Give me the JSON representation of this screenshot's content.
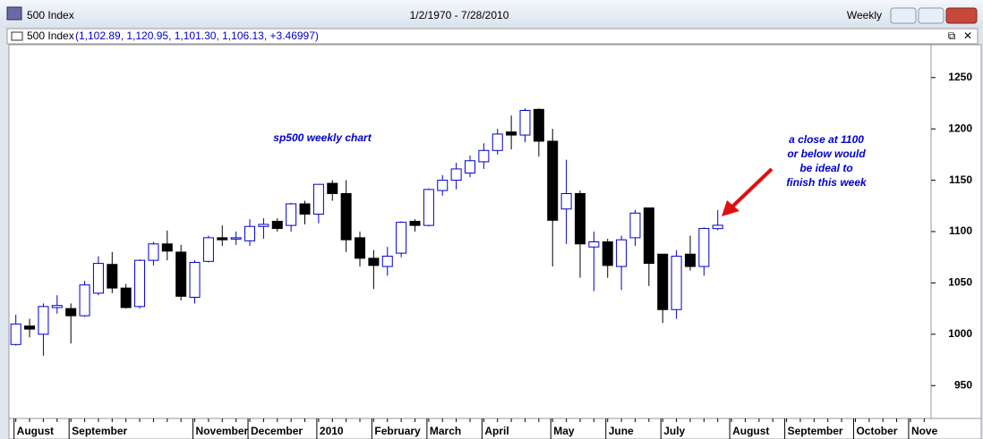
{
  "window": {
    "title": "500 Index",
    "range": "1/2/1970 - 7/28/2010",
    "period": "Weekly"
  },
  "chart_data": {
    "type": "candlestick",
    "legend_name": "500 Index",
    "legend_values": "(1,102.89, 1,120.95, 1,101.30, 1,106.13, +3.46997)",
    "annotations": [
      {
        "lines": [
          "sp500 weekly chart"
        ]
      },
      {
        "lines": [
          "a close at 1100",
          "or below would",
          "be ideal to",
          "finish this week"
        ]
      }
    ],
    "categories": [
      "August",
      null,
      null,
      null,
      "September",
      null,
      null,
      null,
      null,
      null,
      null,
      null,
      null,
      "November",
      null,
      null,
      null,
      "December",
      null,
      null,
      null,
      null,
      "2010",
      null,
      null,
      null,
      "February",
      null,
      null,
      null,
      "March",
      null,
      null,
      null,
      "April",
      null,
      null,
      null,
      null,
      "May",
      null,
      null,
      null,
      "June",
      null,
      null,
      null,
      "July",
      null,
      null,
      null,
      null,
      "August",
      null,
      null,
      null,
      "September",
      null,
      null,
      null,
      null,
      "October",
      null,
      null,
      null,
      "Nove",
      null
    ],
    "open": [
      990,
      1008,
      1000,
      1026,
      1025,
      1018,
      1040,
      1068,
      1045,
      1027,
      1072,
      1088,
      1080,
      1036,
      1071,
      1094,
      1093,
      1091,
      1105,
      1110,
      1106,
      1127,
      1117,
      1147,
      1137,
      1094,
      1074,
      1066,
      1079,
      1110,
      1106,
      1140,
      1150,
      1157,
      1168,
      1179,
      1197,
      1194,
      1219,
      1188,
      1122,
      1137,
      1085,
      1090,
      1066,
      1094,
      1123,
      1078,
      1024,
      1078,
      1066,
      1102.89,
      null,
      null,
      null,
      null,
      null,
      null,
      null,
      null,
      null,
      null,
      null,
      null,
      null,
      null,
      null
    ],
    "high": [
      1019,
      1015,
      1030,
      1038,
      1030,
      1052,
      1076,
      1080,
      1049,
      1073,
      1090,
      1101,
      1087,
      1072,
      1096,
      1106,
      1100,
      1112,
      1113,
      1113,
      1128,
      1130,
      1146,
      1150,
      1150,
      1100,
      1082,
      1085,
      1110,
      1112,
      1142,
      1155,
      1167,
      1174,
      1186,
      1200,
      1213,
      1220,
      1220,
      1200,
      1170,
      1140,
      1100,
      1093,
      1096,
      1121,
      1123,
      1078,
      1082,
      1096,
      1104,
      1120.95,
      null,
      null,
      null,
      null,
      null,
      null,
      null,
      null,
      null,
      null,
      null,
      null,
      null,
      null,
      null
    ],
    "low": [
      989,
      997,
      979,
      1020,
      991,
      1017,
      1038,
      1040,
      1025,
      1025,
      1067,
      1072,
      1033,
      1030,
      1070,
      1086,
      1087,
      1086,
      1093,
      1100,
      1100,
      1107,
      1108,
      1130,
      1080,
      1066,
      1044,
      1057,
      1075,
      1100,
      1105,
      1135,
      1141,
      1153,
      1161,
      1175,
      1180,
      1187,
      1173,
      1066,
      1088,
      1055,
      1042,
      1055,
      1043,
      1086,
      1047,
      1011,
      1015,
      1062,
      1057,
      1101.3,
      null,
      null,
      null,
      null,
      null,
      null,
      null,
      null,
      null,
      null,
      null,
      null,
      null,
      null,
      null
    ],
    "close": [
      1010,
      1005,
      1027,
      1028,
      1018,
      1048,
      1069,
      1045,
      1026,
      1072,
      1088,
      1081,
      1037,
      1070,
      1094,
      1092,
      1094,
      1105,
      1107,
      1103,
      1127,
      1117,
      1146,
      1137,
      1092,
      1074,
      1067,
      1076,
      1109,
      1106,
      1141,
      1150,
      1161,
      1169,
      1179,
      1195,
      1194,
      1218,
      1188,
      1111,
      1137,
      1088,
      1090,
      1067,
      1092,
      1118,
      1069,
      1024,
      1076,
      1066,
      1103,
      1106.13,
      null,
      null,
      null,
      null,
      null,
      null,
      null,
      null,
      null,
      null,
      null,
      null,
      null,
      null,
      null
    ],
    "up_color": "#0000cc",
    "down_color": "#000000",
    "ylim": [
      918,
      1282
    ],
    "yticks": [
      950,
      1000,
      1050,
      1100,
      1150,
      1200,
      1250
    ]
  }
}
